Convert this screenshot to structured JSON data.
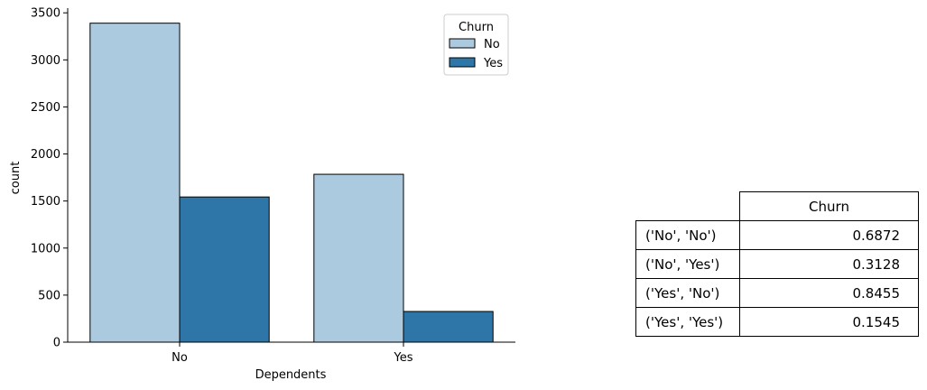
{
  "chart_data": {
    "type": "bar",
    "xlabel": "Dependents",
    "ylabel": "count",
    "categories": [
      "No",
      "Yes"
    ],
    "ylim": [
      0,
      3550
    ],
    "yticks": [
      0,
      500,
      1000,
      1500,
      2000,
      2500,
      3000,
      3500
    ],
    "series": [
      {
        "name": "No",
        "color": "#abcae0",
        "values": [
          3390,
          1784
        ]
      },
      {
        "name": "Yes",
        "color": "#2f76a8",
        "values": [
          1543,
          326
        ]
      }
    ],
    "legend": {
      "title": "Churn",
      "placement": "top-right"
    },
    "grid": false
  },
  "table": {
    "header": "Churn",
    "rows": [
      {
        "index": "('No', 'No')",
        "value": "0.6872"
      },
      {
        "index": "('No', 'Yes')",
        "value": "0.3128"
      },
      {
        "index": "('Yes', 'No')",
        "value": "0.8455"
      },
      {
        "index": "('Yes', 'Yes')",
        "value": "0.1545"
      }
    ]
  }
}
